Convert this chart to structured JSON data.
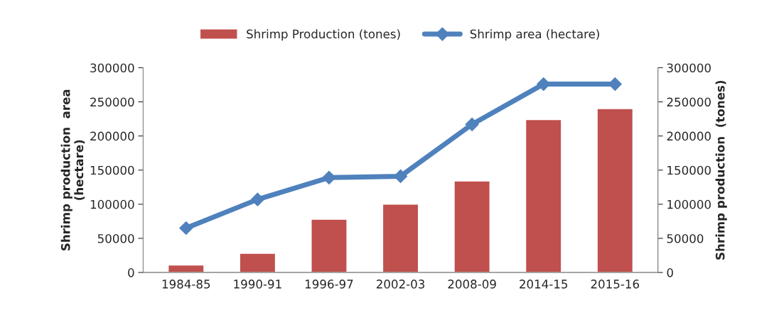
{
  "chart_data": {
    "type": "bar",
    "categories": [
      "1984-85",
      "1990-91",
      "1996-97",
      "2002-03",
      "2008-09",
      "2014-15",
      "2015-16"
    ],
    "series": [
      {
        "name": "Shrimp Production (tones)",
        "axis": "y2",
        "color": "#c0504d",
        "values": [
          11000,
          28000,
          78000,
          100000,
          134000,
          224000,
          240000
        ]
      },
      {
        "name": "Shrimp area (hectare)",
        "type": "line",
        "color": "#4f81bd",
        "marker": "diamond",
        "values": [
          65000,
          107000,
          139000,
          141000,
          217000,
          276000,
          276000
        ]
      }
    ],
    "ylabel": "Shrimp production  area\n(hectare)",
    "y2label": "Shrimp production  (tones)",
    "ylim": [
      0,
      300000
    ],
    "yticks": [
      0,
      50000,
      100000,
      150000,
      200000,
      250000,
      300000
    ],
    "y2lim": [
      0,
      300000
    ],
    "y2ticks": [
      0,
      50000,
      100000,
      150000,
      200000,
      250000,
      300000
    ],
    "grid": false,
    "legend": "top"
  }
}
